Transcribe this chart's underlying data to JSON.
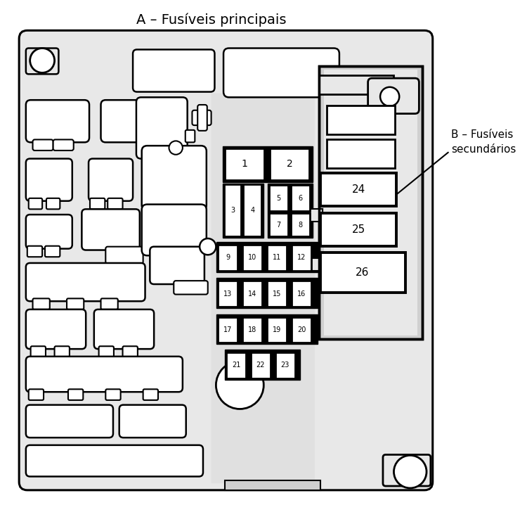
{
  "title_a": "A – Fusíveis principais",
  "title_b": "B – Fusíveis\nsecundários",
  "bg_light": "#e8e8e8",
  "bg_white": "#ffffff",
  "fig_bg": "#ffffff",
  "border": "#000000"
}
